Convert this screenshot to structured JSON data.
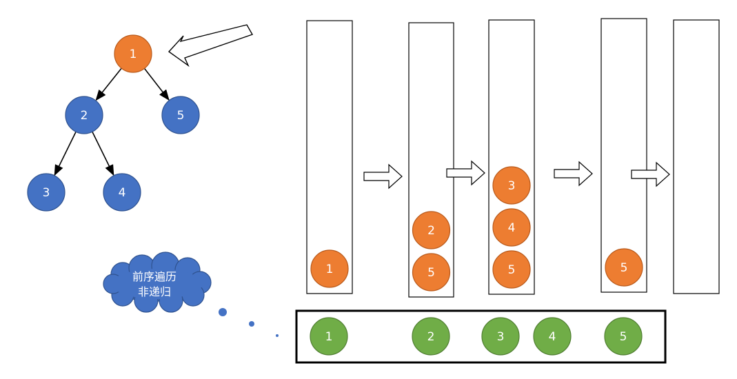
{
  "colors": {
    "orange": "#ed7d31",
    "orange_stroke": "#b85a1c",
    "blue": "#4472c4",
    "blue_stroke": "#2f528f",
    "green": "#70ad47",
    "green_stroke": "#507e32",
    "cloud": "#4472c4",
    "stroke": "#000000",
    "text_on_fill": "#ffffff"
  },
  "tree": {
    "nodes": [
      {
        "id": "1",
        "label": "1",
        "color": "orange"
      },
      {
        "id": "2",
        "label": "2",
        "color": "blue"
      },
      {
        "id": "5",
        "label": "5",
        "color": "blue"
      },
      {
        "id": "3",
        "label": "3",
        "color": "blue"
      },
      {
        "id": "4",
        "label": "4",
        "color": "blue"
      }
    ],
    "edges": [
      {
        "from": "1",
        "to": "2"
      },
      {
        "from": "1",
        "to": "5"
      },
      {
        "from": "2",
        "to": "3"
      },
      {
        "from": "2",
        "to": "4"
      }
    ]
  },
  "stacks": [
    {
      "step": 1,
      "items": [
        "1"
      ]
    },
    {
      "step": 2,
      "items": [
        "2",
        "5"
      ]
    },
    {
      "step": 3,
      "items": [
        "3",
        "4",
        "5"
      ]
    },
    {
      "step": 4,
      "items": [
        "5"
      ]
    },
    {
      "step": 5,
      "items": []
    }
  ],
  "cloud": {
    "line1": "前序遍历",
    "line2": "非递归"
  },
  "output": {
    "items": [
      "1",
      "2",
      "3",
      "4",
      "5"
    ]
  }
}
